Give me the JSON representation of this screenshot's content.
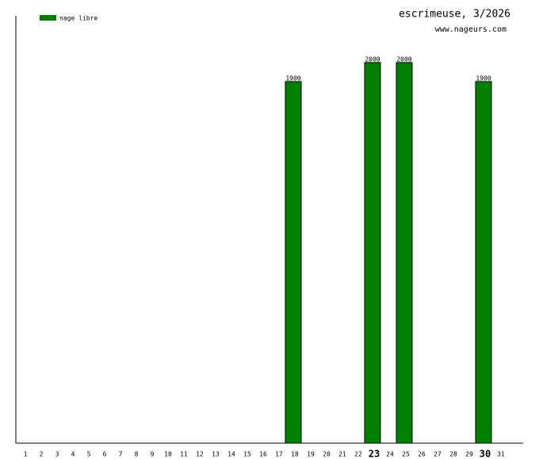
{
  "chart_data": {
    "type": "bar",
    "title": "escrimeuse, 3/2026",
    "subtitle": "www.nageurs.com",
    "categories": [
      "1",
      "2",
      "3",
      "4",
      "5",
      "6",
      "7",
      "8",
      "9",
      "10",
      "11",
      "12",
      "13",
      "14",
      "15",
      "16",
      "17",
      "18",
      "19",
      "20",
      "21",
      "22",
      "23",
      "24",
      "25",
      "26",
      "27",
      "28",
      "29",
      "30",
      "31"
    ],
    "series": [
      {
        "name": "nage libre",
        "color": "#008000",
        "values": [
          null,
          null,
          null,
          null,
          null,
          null,
          null,
          null,
          null,
          null,
          null,
          null,
          null,
          null,
          null,
          null,
          null,
          1900,
          null,
          null,
          null,
          null,
          2000,
          null,
          2000,
          null,
          null,
          null,
          null,
          1900,
          null
        ]
      }
    ],
    "ylim": [
      0,
      2245
    ],
    "bold_category_index": [
      22,
      29
    ],
    "legend": "top-left"
  }
}
